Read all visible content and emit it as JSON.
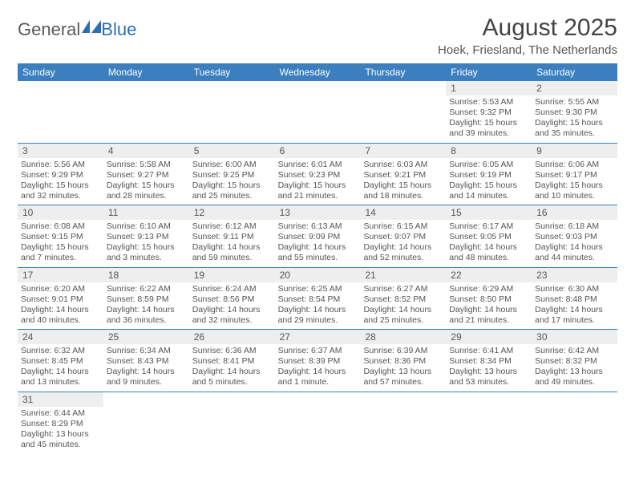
{
  "logo": {
    "text1": "General",
    "text2": "Blue"
  },
  "title": "August 2025",
  "location": "Hoek, Friesland, The Netherlands",
  "colors": {
    "header_bg": "#3b7fbf",
    "header_text": "#ffffff",
    "daynum_bg": "#eeeeee",
    "body_text": "#555555",
    "row_border": "#3b7fbf"
  },
  "weekdays": [
    "Sunday",
    "Monday",
    "Tuesday",
    "Wednesday",
    "Thursday",
    "Friday",
    "Saturday"
  ],
  "weeks": [
    [
      null,
      null,
      null,
      null,
      null,
      {
        "n": "1",
        "sr": "Sunrise: 5:53 AM",
        "ss": "Sunset: 9:32 PM",
        "dl": "Daylight: 15 hours and 39 minutes."
      },
      {
        "n": "2",
        "sr": "Sunrise: 5:55 AM",
        "ss": "Sunset: 9:30 PM",
        "dl": "Daylight: 15 hours and 35 minutes."
      }
    ],
    [
      {
        "n": "3",
        "sr": "Sunrise: 5:56 AM",
        "ss": "Sunset: 9:29 PM",
        "dl": "Daylight: 15 hours and 32 minutes."
      },
      {
        "n": "4",
        "sr": "Sunrise: 5:58 AM",
        "ss": "Sunset: 9:27 PM",
        "dl": "Daylight: 15 hours and 28 minutes."
      },
      {
        "n": "5",
        "sr": "Sunrise: 6:00 AM",
        "ss": "Sunset: 9:25 PM",
        "dl": "Daylight: 15 hours and 25 minutes."
      },
      {
        "n": "6",
        "sr": "Sunrise: 6:01 AM",
        "ss": "Sunset: 9:23 PM",
        "dl": "Daylight: 15 hours and 21 minutes."
      },
      {
        "n": "7",
        "sr": "Sunrise: 6:03 AM",
        "ss": "Sunset: 9:21 PM",
        "dl": "Daylight: 15 hours and 18 minutes."
      },
      {
        "n": "8",
        "sr": "Sunrise: 6:05 AM",
        "ss": "Sunset: 9:19 PM",
        "dl": "Daylight: 15 hours and 14 minutes."
      },
      {
        "n": "9",
        "sr": "Sunrise: 6:06 AM",
        "ss": "Sunset: 9:17 PM",
        "dl": "Daylight: 15 hours and 10 minutes."
      }
    ],
    [
      {
        "n": "10",
        "sr": "Sunrise: 6:08 AM",
        "ss": "Sunset: 9:15 PM",
        "dl": "Daylight: 15 hours and 7 minutes."
      },
      {
        "n": "11",
        "sr": "Sunrise: 6:10 AM",
        "ss": "Sunset: 9:13 PM",
        "dl": "Daylight: 15 hours and 3 minutes."
      },
      {
        "n": "12",
        "sr": "Sunrise: 6:12 AM",
        "ss": "Sunset: 9:11 PM",
        "dl": "Daylight: 14 hours and 59 minutes."
      },
      {
        "n": "13",
        "sr": "Sunrise: 6:13 AM",
        "ss": "Sunset: 9:09 PM",
        "dl": "Daylight: 14 hours and 55 minutes."
      },
      {
        "n": "14",
        "sr": "Sunrise: 6:15 AM",
        "ss": "Sunset: 9:07 PM",
        "dl": "Daylight: 14 hours and 52 minutes."
      },
      {
        "n": "15",
        "sr": "Sunrise: 6:17 AM",
        "ss": "Sunset: 9:05 PM",
        "dl": "Daylight: 14 hours and 48 minutes."
      },
      {
        "n": "16",
        "sr": "Sunrise: 6:18 AM",
        "ss": "Sunset: 9:03 PM",
        "dl": "Daylight: 14 hours and 44 minutes."
      }
    ],
    [
      {
        "n": "17",
        "sr": "Sunrise: 6:20 AM",
        "ss": "Sunset: 9:01 PM",
        "dl": "Daylight: 14 hours and 40 minutes."
      },
      {
        "n": "18",
        "sr": "Sunrise: 6:22 AM",
        "ss": "Sunset: 8:59 PM",
        "dl": "Daylight: 14 hours and 36 minutes."
      },
      {
        "n": "19",
        "sr": "Sunrise: 6:24 AM",
        "ss": "Sunset: 8:56 PM",
        "dl": "Daylight: 14 hours and 32 minutes."
      },
      {
        "n": "20",
        "sr": "Sunrise: 6:25 AM",
        "ss": "Sunset: 8:54 PM",
        "dl": "Daylight: 14 hours and 29 minutes."
      },
      {
        "n": "21",
        "sr": "Sunrise: 6:27 AM",
        "ss": "Sunset: 8:52 PM",
        "dl": "Daylight: 14 hours and 25 minutes."
      },
      {
        "n": "22",
        "sr": "Sunrise: 6:29 AM",
        "ss": "Sunset: 8:50 PM",
        "dl": "Daylight: 14 hours and 21 minutes."
      },
      {
        "n": "23",
        "sr": "Sunrise: 6:30 AM",
        "ss": "Sunset: 8:48 PM",
        "dl": "Daylight: 14 hours and 17 minutes."
      }
    ],
    [
      {
        "n": "24",
        "sr": "Sunrise: 6:32 AM",
        "ss": "Sunset: 8:45 PM",
        "dl": "Daylight: 14 hours and 13 minutes."
      },
      {
        "n": "25",
        "sr": "Sunrise: 6:34 AM",
        "ss": "Sunset: 8:43 PM",
        "dl": "Daylight: 14 hours and 9 minutes."
      },
      {
        "n": "26",
        "sr": "Sunrise: 6:36 AM",
        "ss": "Sunset: 8:41 PM",
        "dl": "Daylight: 14 hours and 5 minutes."
      },
      {
        "n": "27",
        "sr": "Sunrise: 6:37 AM",
        "ss": "Sunset: 8:39 PM",
        "dl": "Daylight: 14 hours and 1 minute."
      },
      {
        "n": "28",
        "sr": "Sunrise: 6:39 AM",
        "ss": "Sunset: 8:36 PM",
        "dl": "Daylight: 13 hours and 57 minutes."
      },
      {
        "n": "29",
        "sr": "Sunrise: 6:41 AM",
        "ss": "Sunset: 8:34 PM",
        "dl": "Daylight: 13 hours and 53 minutes."
      },
      {
        "n": "30",
        "sr": "Sunrise: 6:42 AM",
        "ss": "Sunset: 8:32 PM",
        "dl": "Daylight: 13 hours and 49 minutes."
      }
    ],
    [
      {
        "n": "31",
        "sr": "Sunrise: 6:44 AM",
        "ss": "Sunset: 8:29 PM",
        "dl": "Daylight: 13 hours and 45 minutes."
      },
      null,
      null,
      null,
      null,
      null,
      null
    ]
  ]
}
